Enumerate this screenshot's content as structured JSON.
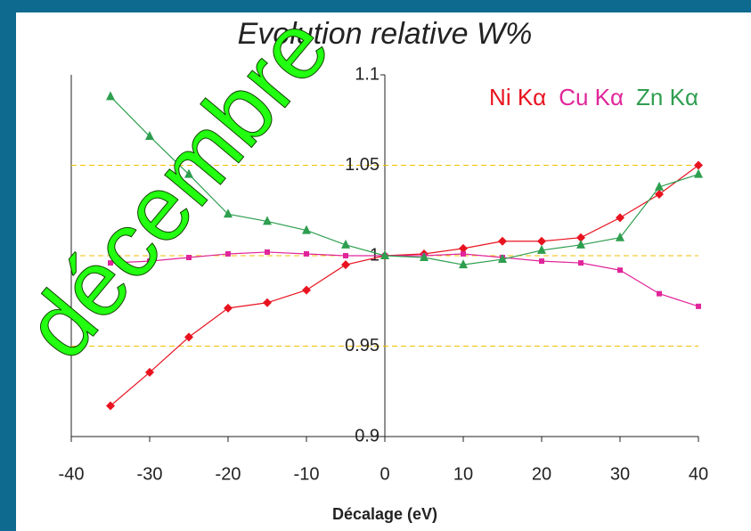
{
  "chart_data": {
    "type": "line",
    "title": "Evolution relative W%",
    "x_label": "Décalage (eV)",
    "watermark": "décembre",
    "x": [
      -35,
      -30,
      -25,
      -20,
      -15,
      -10,
      -5,
      0,
      5,
      10,
      15,
      20,
      25,
      30,
      35,
      40
    ],
    "series": [
      {
        "name": "Ni Kα",
        "color": "#e8131f",
        "marker": "diamond",
        "values": [
          0.917,
          0.9355,
          0.955,
          0.971,
          0.974,
          0.981,
          0.995,
          1.0,
          1.001,
          1.004,
          1.008,
          1.008,
          1.01,
          1.021,
          1.034,
          1.05
        ]
      },
      {
        "name": "Cu Kα",
        "color": "#e0259a",
        "marker": "square",
        "values": [
          0.996,
          0.997,
          0.999,
          1.001,
          1.002,
          1.001,
          1.0,
          1.0,
          1.0,
          1.001,
          0.999,
          0.997,
          0.996,
          0.992,
          0.979,
          0.972
        ]
      },
      {
        "name": "Zn Kα",
        "color": "#2e9e4f",
        "marker": "triangle",
        "values": [
          1.088,
          1.066,
          1.045,
          1.023,
          1.019,
          1.014,
          1.006,
          1.0,
          0.999,
          0.995,
          0.998,
          1.003,
          1.006,
          1.01,
          1.038,
          1.045
        ]
      }
    ],
    "xlim": [
      -40,
      40
    ],
    "xticks": [
      -40,
      -30,
      -20,
      -10,
      0,
      10,
      20,
      30,
      40
    ],
    "ylim": [
      0.9,
      1.1
    ],
    "yticks": [
      0.9,
      0.95,
      1,
      1.05,
      1.1
    ],
    "grid": true,
    "legend": "top-right"
  }
}
